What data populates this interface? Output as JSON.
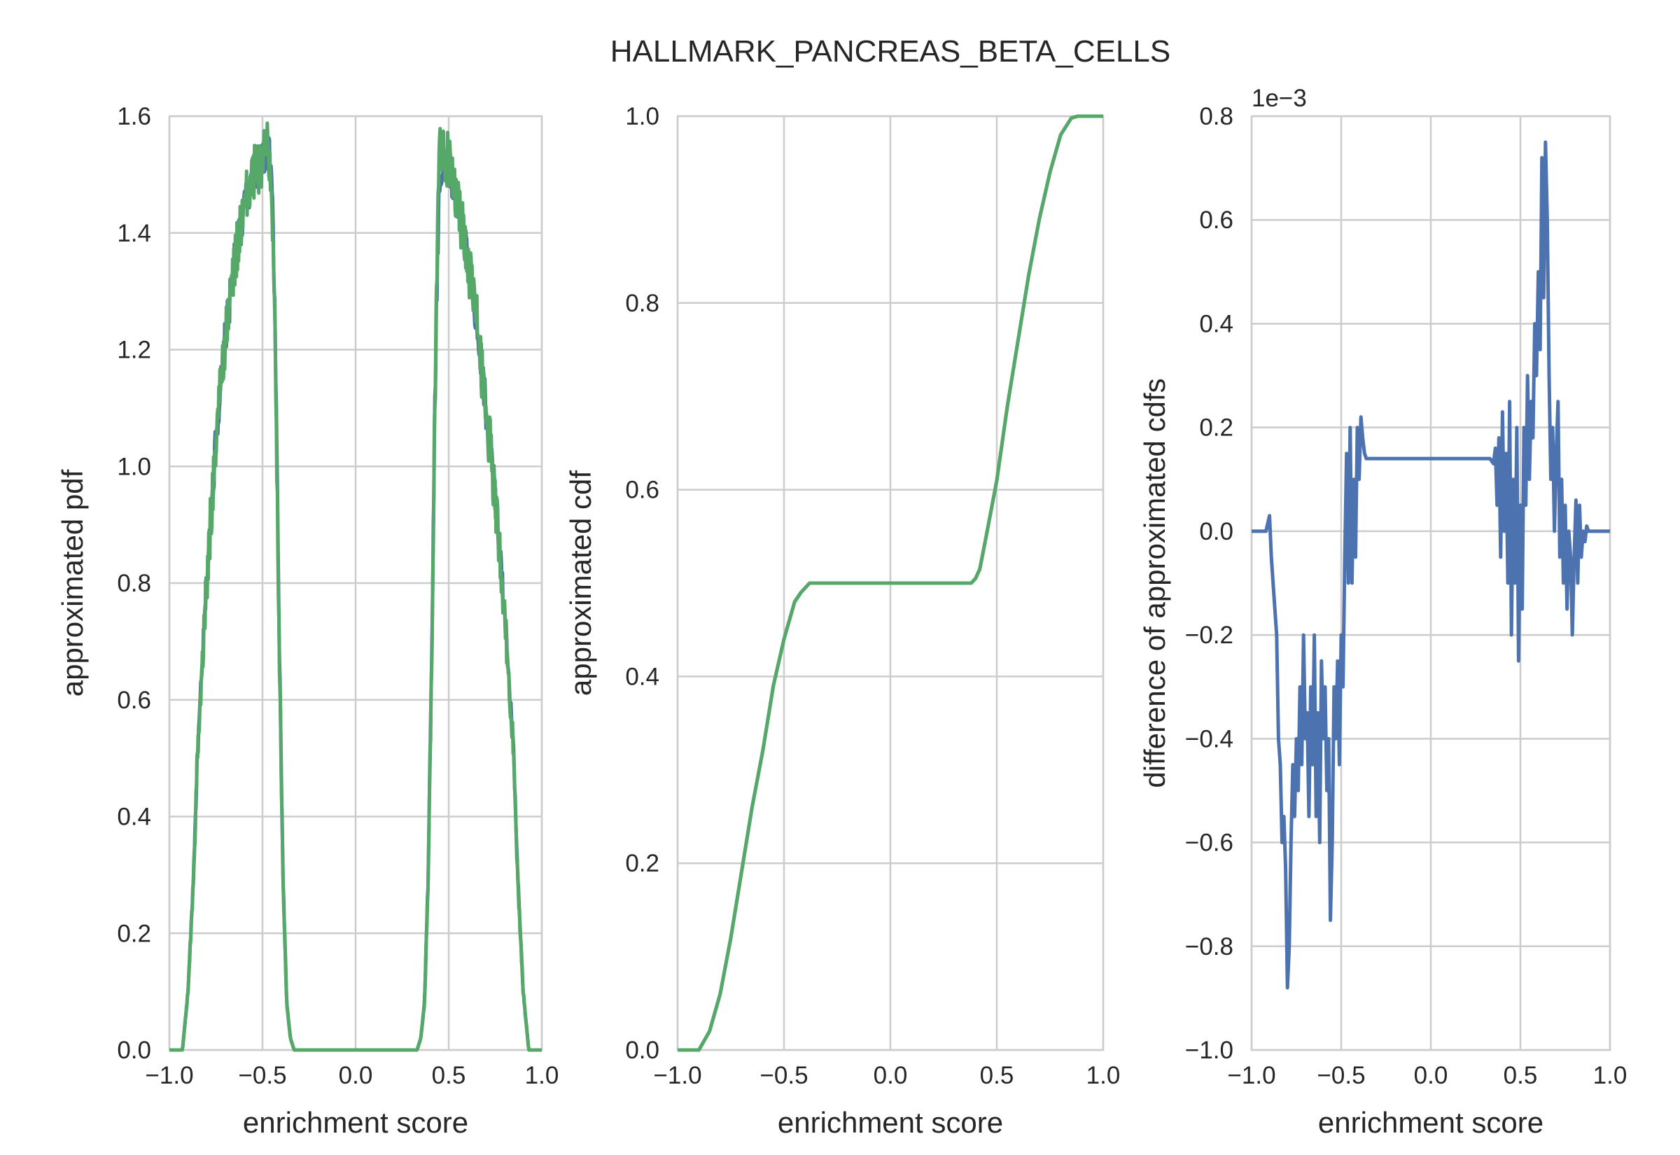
{
  "title": "HALLMARK_PANCREAS_BETA_CELLS",
  "colors": {
    "blue": "#4c72b0",
    "green": "#55a868",
    "grid": "#cccccc",
    "text": "#262626"
  },
  "chart_data": [
    {
      "type": "line",
      "xlabel": "enrichment score",
      "ylabel": "approximated pdf",
      "xlim": [
        -1.0,
        1.0
      ],
      "ylim": [
        0.0,
        1.6
      ],
      "xticks": [
        "−1.0",
        "−0.5",
        "0.0",
        "0.5",
        "1.0"
      ],
      "yticks": [
        "0.0",
        "0.2",
        "0.4",
        "0.6",
        "0.8",
        "1.0",
        "1.2",
        "1.4",
        "1.6"
      ],
      "grid": true,
      "series": [
        {
          "color": "#4c72b0",
          "noise": 0.035,
          "x": [
            -1.0,
            -0.93,
            -0.9,
            -0.87,
            -0.85,
            -0.8,
            -0.75,
            -0.7,
            -0.65,
            -0.6,
            -0.55,
            -0.5,
            -0.47,
            -0.45,
            -0.43,
            -0.41,
            -0.39,
            -0.37,
            -0.35,
            -0.33,
            -0.3,
            0.0,
            0.3,
            0.33,
            0.35,
            0.37,
            0.39,
            0.41,
            0.43,
            0.45,
            0.5,
            0.55,
            0.6,
            0.65,
            0.7,
            0.75,
            0.8,
            0.85,
            0.87,
            0.9,
            0.93,
            1.0
          ],
          "y": [
            0.0,
            0.0,
            0.1,
            0.3,
            0.5,
            0.8,
            1.05,
            1.22,
            1.35,
            1.44,
            1.5,
            1.53,
            1.54,
            1.5,
            1.2,
            0.7,
            0.3,
            0.08,
            0.02,
            0.0,
            0.0,
            0.0,
            0.0,
            0.0,
            0.02,
            0.08,
            0.3,
            0.7,
            1.2,
            1.5,
            1.52,
            1.45,
            1.36,
            1.25,
            1.1,
            0.95,
            0.75,
            0.5,
            0.3,
            0.1,
            0.0,
            0.0
          ]
        },
        {
          "color": "#55a868",
          "noise": 0.05,
          "x": [
            -1.0,
            -0.93,
            -0.9,
            -0.87,
            -0.85,
            -0.8,
            -0.75,
            -0.7,
            -0.65,
            -0.6,
            -0.55,
            -0.5,
            -0.47,
            -0.45,
            -0.43,
            -0.41,
            -0.39,
            -0.37,
            -0.35,
            -0.33,
            -0.3,
            0.0,
            0.3,
            0.33,
            0.35,
            0.37,
            0.39,
            0.41,
            0.43,
            0.45,
            0.5,
            0.55,
            0.6,
            0.65,
            0.7,
            0.75,
            0.8,
            0.85,
            0.87,
            0.9,
            0.93,
            1.0
          ],
          "y": [
            0.0,
            0.0,
            0.1,
            0.3,
            0.5,
            0.8,
            1.05,
            1.22,
            1.35,
            1.44,
            1.5,
            1.53,
            1.55,
            1.5,
            1.2,
            0.7,
            0.3,
            0.08,
            0.02,
            0.0,
            0.0,
            0.0,
            0.0,
            0.0,
            0.02,
            0.08,
            0.3,
            0.7,
            1.2,
            1.55,
            1.52,
            1.45,
            1.36,
            1.25,
            1.1,
            0.95,
            0.75,
            0.5,
            0.3,
            0.1,
            0.0,
            0.0
          ]
        }
      ]
    },
    {
      "type": "line",
      "xlabel": "enrichment score",
      "ylabel": "approximated cdf",
      "xlim": [
        -1.0,
        1.0
      ],
      "ylim": [
        0.0,
        1.0
      ],
      "xticks": [
        "−1.0",
        "−0.5",
        "0.0",
        "0.5",
        "1.0"
      ],
      "yticks": [
        "0.0",
        "0.2",
        "0.4",
        "0.6",
        "0.8",
        "1.0"
      ],
      "grid": true,
      "series": [
        {
          "color": "#4c72b0",
          "x": [
            -1.0,
            -0.9,
            -0.85,
            -0.8,
            -0.75,
            -0.7,
            -0.65,
            -0.6,
            -0.55,
            -0.5,
            -0.45,
            -0.42,
            -0.4,
            -0.38,
            -0.35,
            0.35,
            0.38,
            0.4,
            0.42,
            0.45,
            0.5,
            0.55,
            0.6,
            0.65,
            0.7,
            0.75,
            0.8,
            0.85,
            0.88,
            0.9,
            1.0
          ],
          "y": [
            0.0,
            0.0,
            0.02,
            0.06,
            0.12,
            0.19,
            0.26,
            0.32,
            0.39,
            0.44,
            0.48,
            0.49,
            0.495,
            0.5,
            0.5,
            0.5,
            0.5,
            0.505,
            0.515,
            0.55,
            0.61,
            0.69,
            0.76,
            0.83,
            0.89,
            0.94,
            0.98,
            0.998,
            1.0,
            1.0,
            1.0
          ]
        },
        {
          "color": "#55a868",
          "x": [
            -1.0,
            -0.9,
            -0.85,
            -0.8,
            -0.75,
            -0.7,
            -0.65,
            -0.6,
            -0.55,
            -0.5,
            -0.45,
            -0.42,
            -0.4,
            -0.38,
            -0.35,
            0.35,
            0.38,
            0.4,
            0.42,
            0.45,
            0.5,
            0.55,
            0.6,
            0.65,
            0.7,
            0.75,
            0.8,
            0.85,
            0.88,
            0.9,
            1.0
          ],
          "y": [
            0.0,
            0.0,
            0.02,
            0.06,
            0.12,
            0.19,
            0.26,
            0.32,
            0.39,
            0.44,
            0.48,
            0.49,
            0.495,
            0.5,
            0.5,
            0.5,
            0.5,
            0.505,
            0.515,
            0.55,
            0.61,
            0.69,
            0.76,
            0.83,
            0.89,
            0.94,
            0.98,
            0.998,
            1.0,
            1.0,
            1.0
          ]
        }
      ]
    },
    {
      "type": "line",
      "xlabel": "enrichment score",
      "ylabel": "difference of approximated cdfs",
      "offset_label": "1e−3",
      "xlim": [
        -1.0,
        1.0
      ],
      "ylim": [
        -1.0,
        0.8
      ],
      "xticks": [
        "−1.0",
        "−0.5",
        "0.0",
        "0.5",
        "1.0"
      ],
      "yticks": [
        "−1.0",
        "−0.8",
        "−0.6",
        "−0.4",
        "−0.2",
        "0.0",
        "0.2",
        "0.4",
        "0.6",
        "0.8"
      ],
      "grid": true,
      "series": [
        {
          "color": "#4c72b0",
          "x": [
            -1.0,
            -0.95,
            -0.92,
            -0.9,
            -0.89,
            -0.88,
            -0.86,
            -0.85,
            -0.84,
            -0.83,
            -0.82,
            -0.81,
            -0.8,
            -0.79,
            -0.78,
            -0.77,
            -0.76,
            -0.75,
            -0.74,
            -0.73,
            -0.72,
            -0.71,
            -0.7,
            -0.69,
            -0.68,
            -0.67,
            -0.66,
            -0.65,
            -0.64,
            -0.63,
            -0.62,
            -0.61,
            -0.6,
            -0.59,
            -0.58,
            -0.57,
            -0.56,
            -0.55,
            -0.54,
            -0.53,
            -0.52,
            -0.51,
            -0.5,
            -0.49,
            -0.48,
            -0.47,
            -0.46,
            -0.45,
            -0.44,
            -0.43,
            -0.42,
            -0.41,
            -0.4,
            -0.39,
            -0.38,
            -0.37,
            -0.36,
            -0.34,
            -0.3,
            0.0,
            0.3,
            0.33,
            0.35,
            0.36,
            0.37,
            0.38,
            0.39,
            0.4,
            0.41,
            0.42,
            0.43,
            0.44,
            0.45,
            0.46,
            0.47,
            0.48,
            0.49,
            0.5,
            0.51,
            0.52,
            0.53,
            0.54,
            0.55,
            0.56,
            0.57,
            0.58,
            0.59,
            0.6,
            0.61,
            0.62,
            0.63,
            0.64,
            0.65,
            0.66,
            0.67,
            0.68,
            0.69,
            0.7,
            0.71,
            0.72,
            0.73,
            0.74,
            0.75,
            0.76,
            0.77,
            0.78,
            0.79,
            0.8,
            0.81,
            0.82,
            0.83,
            0.84,
            0.85,
            0.86,
            0.87,
            0.88,
            0.9,
            0.93,
            0.96,
            1.0
          ],
          "y": [
            0.0,
            0.0,
            0.0,
            0.03,
            -0.05,
            -0.1,
            -0.2,
            -0.4,
            -0.45,
            -0.6,
            -0.55,
            -0.65,
            -0.88,
            -0.8,
            -0.6,
            -0.45,
            -0.55,
            -0.4,
            -0.5,
            -0.3,
            -0.45,
            -0.2,
            -0.4,
            -0.35,
            -0.55,
            -0.3,
            -0.45,
            -0.2,
            -0.55,
            -0.35,
            -0.6,
            -0.25,
            -0.4,
            -0.3,
            -0.5,
            -0.4,
            -0.75,
            -0.6,
            -0.3,
            -0.4,
            -0.25,
            -0.45,
            -0.2,
            -0.3,
            -0.05,
            0.15,
            -0.1,
            0.2,
            -0.1,
            0.1,
            -0.05,
            0.2,
            0.1,
            0.22,
            0.18,
            0.15,
            0.14,
            0.14,
            0.14,
            0.14,
            0.14,
            0.14,
            0.13,
            0.16,
            0.05,
            0.18,
            -0.05,
            0.23,
            0.0,
            0.15,
            -0.1,
            0.25,
            -0.2,
            0.1,
            -0.1,
            0.2,
            -0.25,
            0.05,
            -0.15,
            0.2,
            0.05,
            0.3,
            0.1,
            0.25,
            0.18,
            0.4,
            0.3,
            0.5,
            0.35,
            0.72,
            0.45,
            0.75,
            0.6,
            0.3,
            0.1,
            0.2,
            0.0,
            0.15,
            0.25,
            -0.05,
            0.1,
            -0.1,
            0.05,
            -0.15,
            0.0,
            -0.05,
            -0.2,
            -0.05,
            0.06,
            -0.1,
            0.05,
            -0.05,
            0.0,
            -0.02,
            0.01,
            0.0,
            0.0,
            0.0,
            0.0,
            0.0
          ]
        }
      ]
    }
  ]
}
